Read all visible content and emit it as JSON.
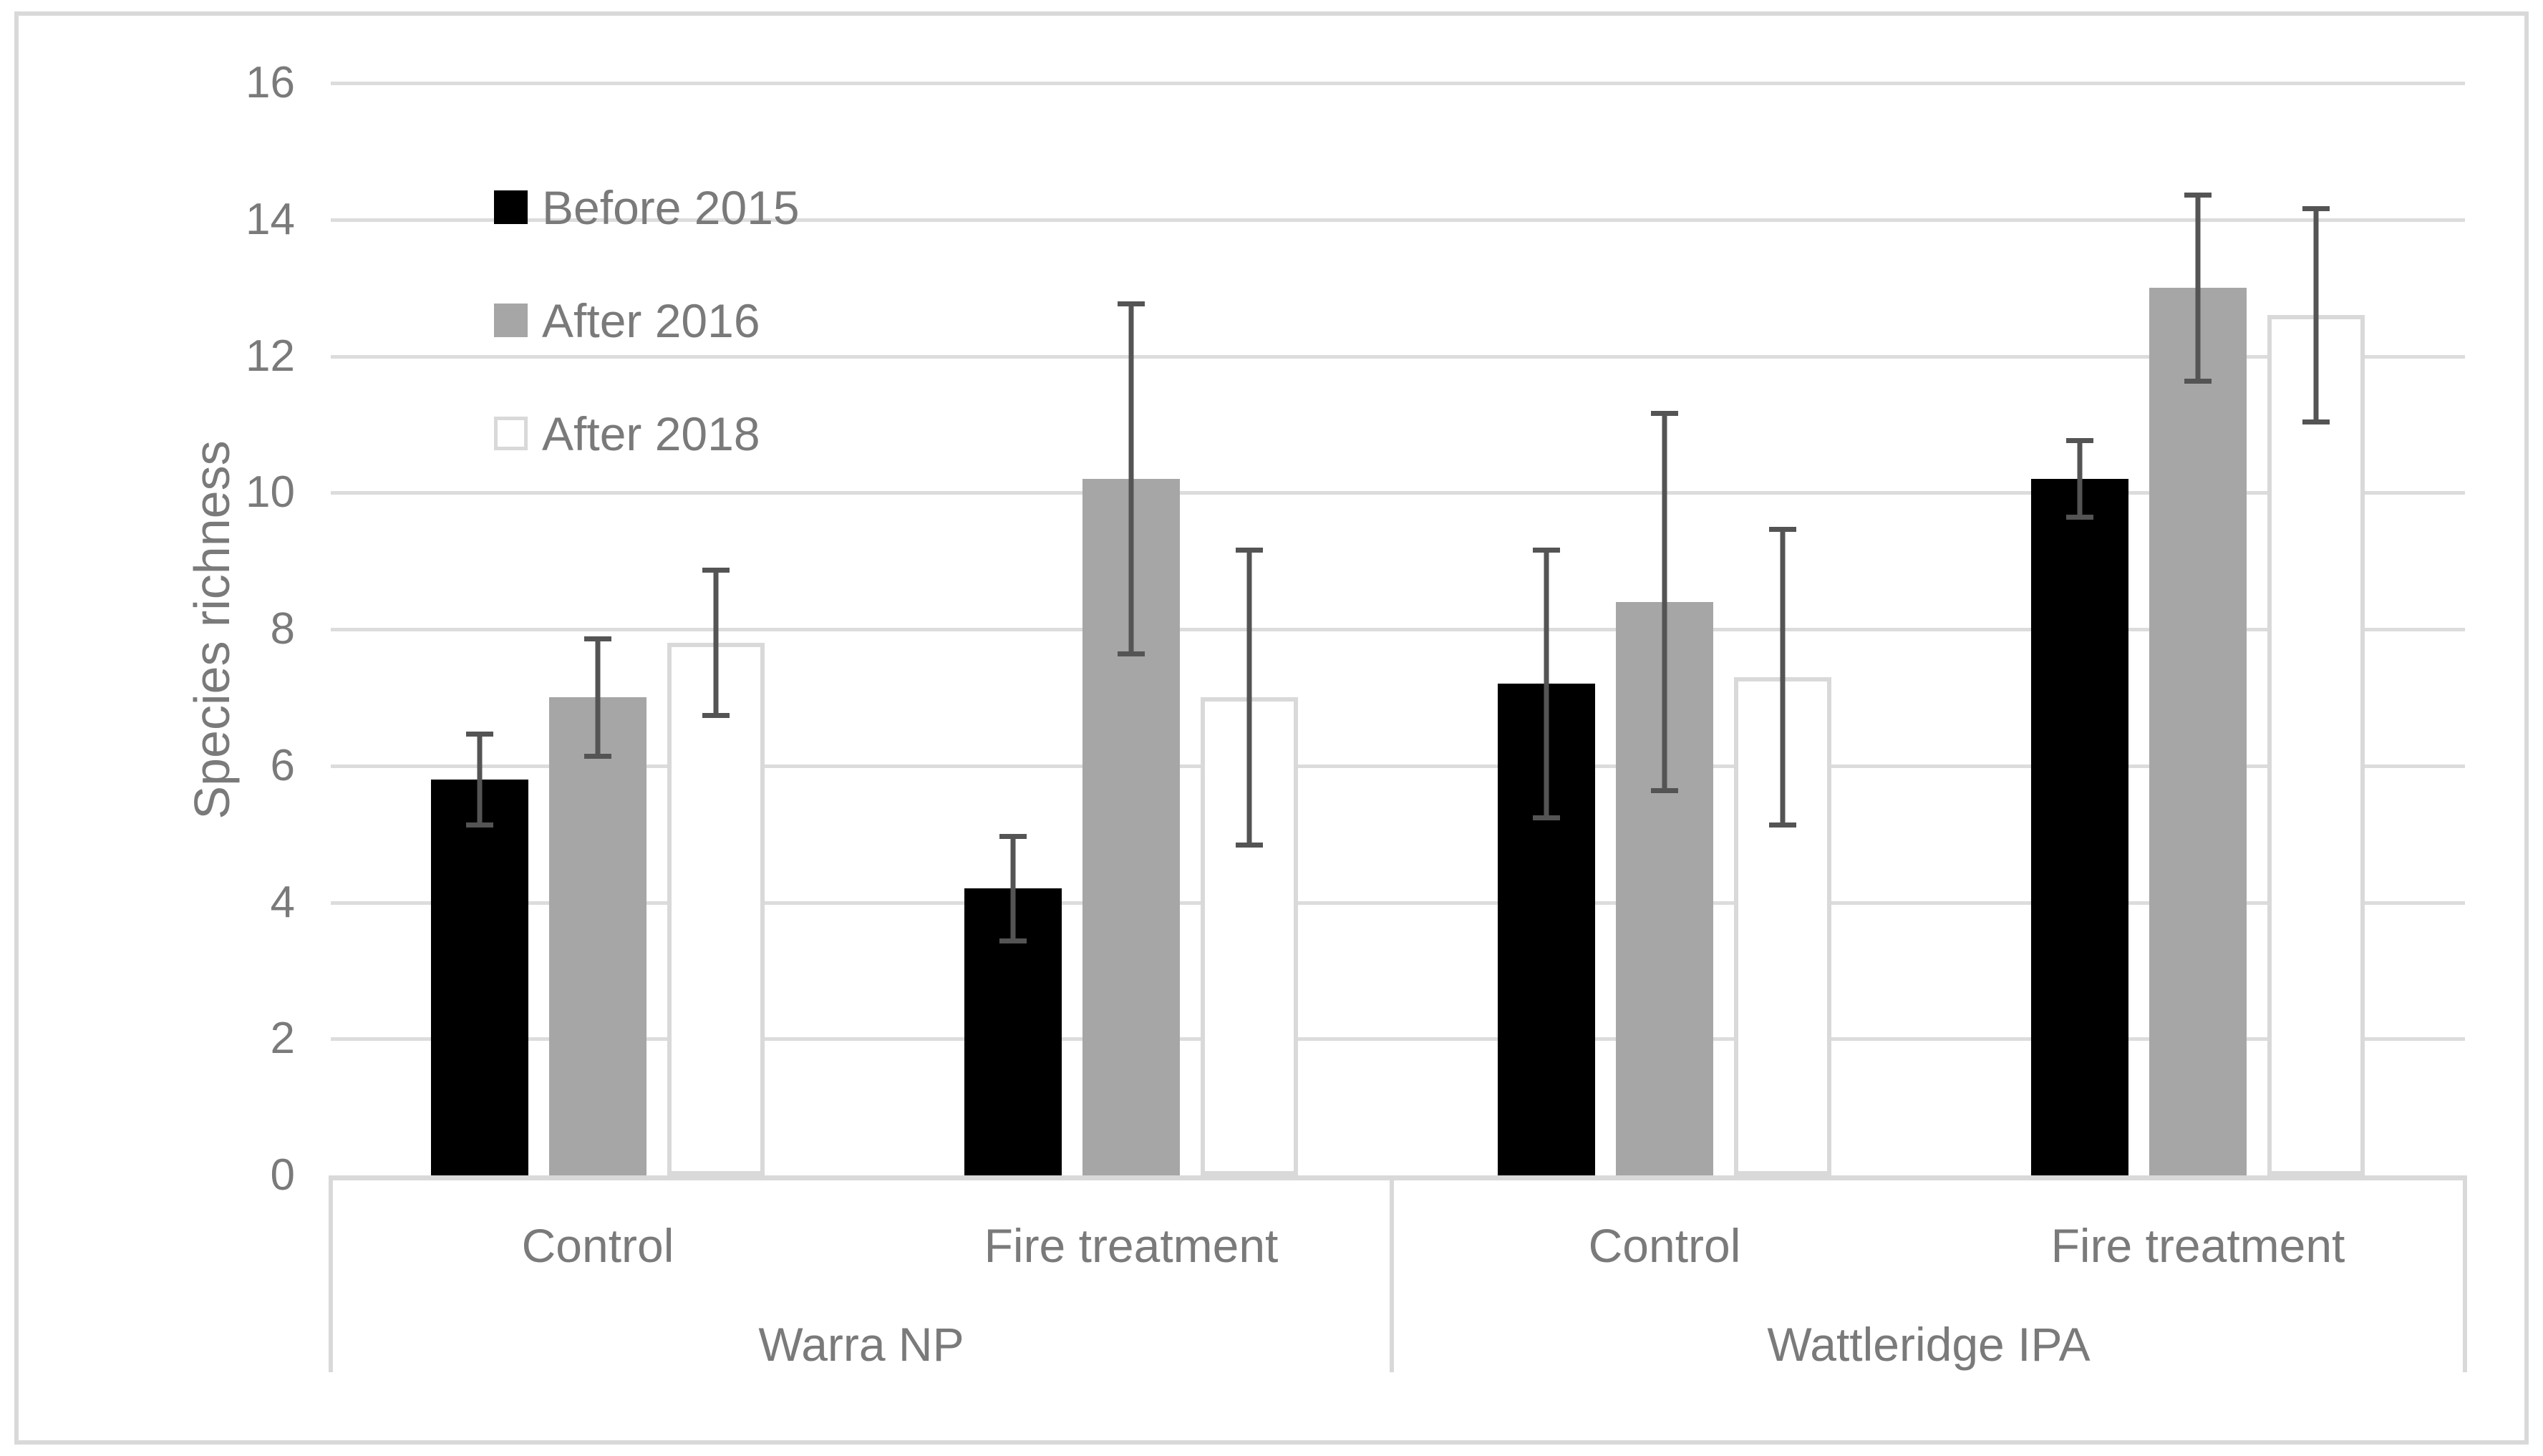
{
  "figure": {
    "background": "#ffffff",
    "border_color": "#d9d9d9"
  },
  "chart_data": {
    "type": "bar",
    "title": "",
    "ylabel": "Species richness",
    "ylim": [
      0,
      16
    ],
    "yticks": [
      0,
      2,
      4,
      6,
      8,
      10,
      12,
      14,
      16
    ],
    "grid": "horizontal-only",
    "gridline_color": "#dcdcdc",
    "axis_line_color": "#d9d9d9",
    "error_bar_color": "#545454",
    "text_color": "#7a7a7a",
    "legend_position": "top-left-inside",
    "treatments": [
      "Control",
      "Fire treatment",
      "Control",
      "Fire treatment"
    ],
    "sites": [
      "Warra NP",
      "Wattleridge IPA"
    ],
    "series": [
      {
        "name": "Before 2015",
        "color": "#000000",
        "border": "#000000",
        "values": [
          5.8,
          4.2,
          7.2,
          10.2
        ],
        "error_low": [
          5.1,
          3.4,
          5.2,
          9.6
        ],
        "error_high": [
          6.5,
          5.0,
          9.2,
          10.8
        ]
      },
      {
        "name": "After 2016",
        "color": "#a6a6a6",
        "border": "#a6a6a6",
        "values": [
          7.0,
          10.2,
          8.4,
          13.0
        ],
        "error_low": [
          6.1,
          7.6,
          5.6,
          11.6
        ],
        "error_high": [
          7.9,
          12.8,
          11.2,
          14.4
        ]
      },
      {
        "name": "After 2018",
        "color": "#ffffff",
        "border": "#d9d9d9",
        "values": [
          7.8,
          7.0,
          7.3,
          12.6
        ],
        "error_low": [
          6.7,
          4.8,
          5.1,
          11.0
        ],
        "error_high": [
          8.9,
          9.2,
          9.5,
          14.2
        ]
      }
    ]
  }
}
